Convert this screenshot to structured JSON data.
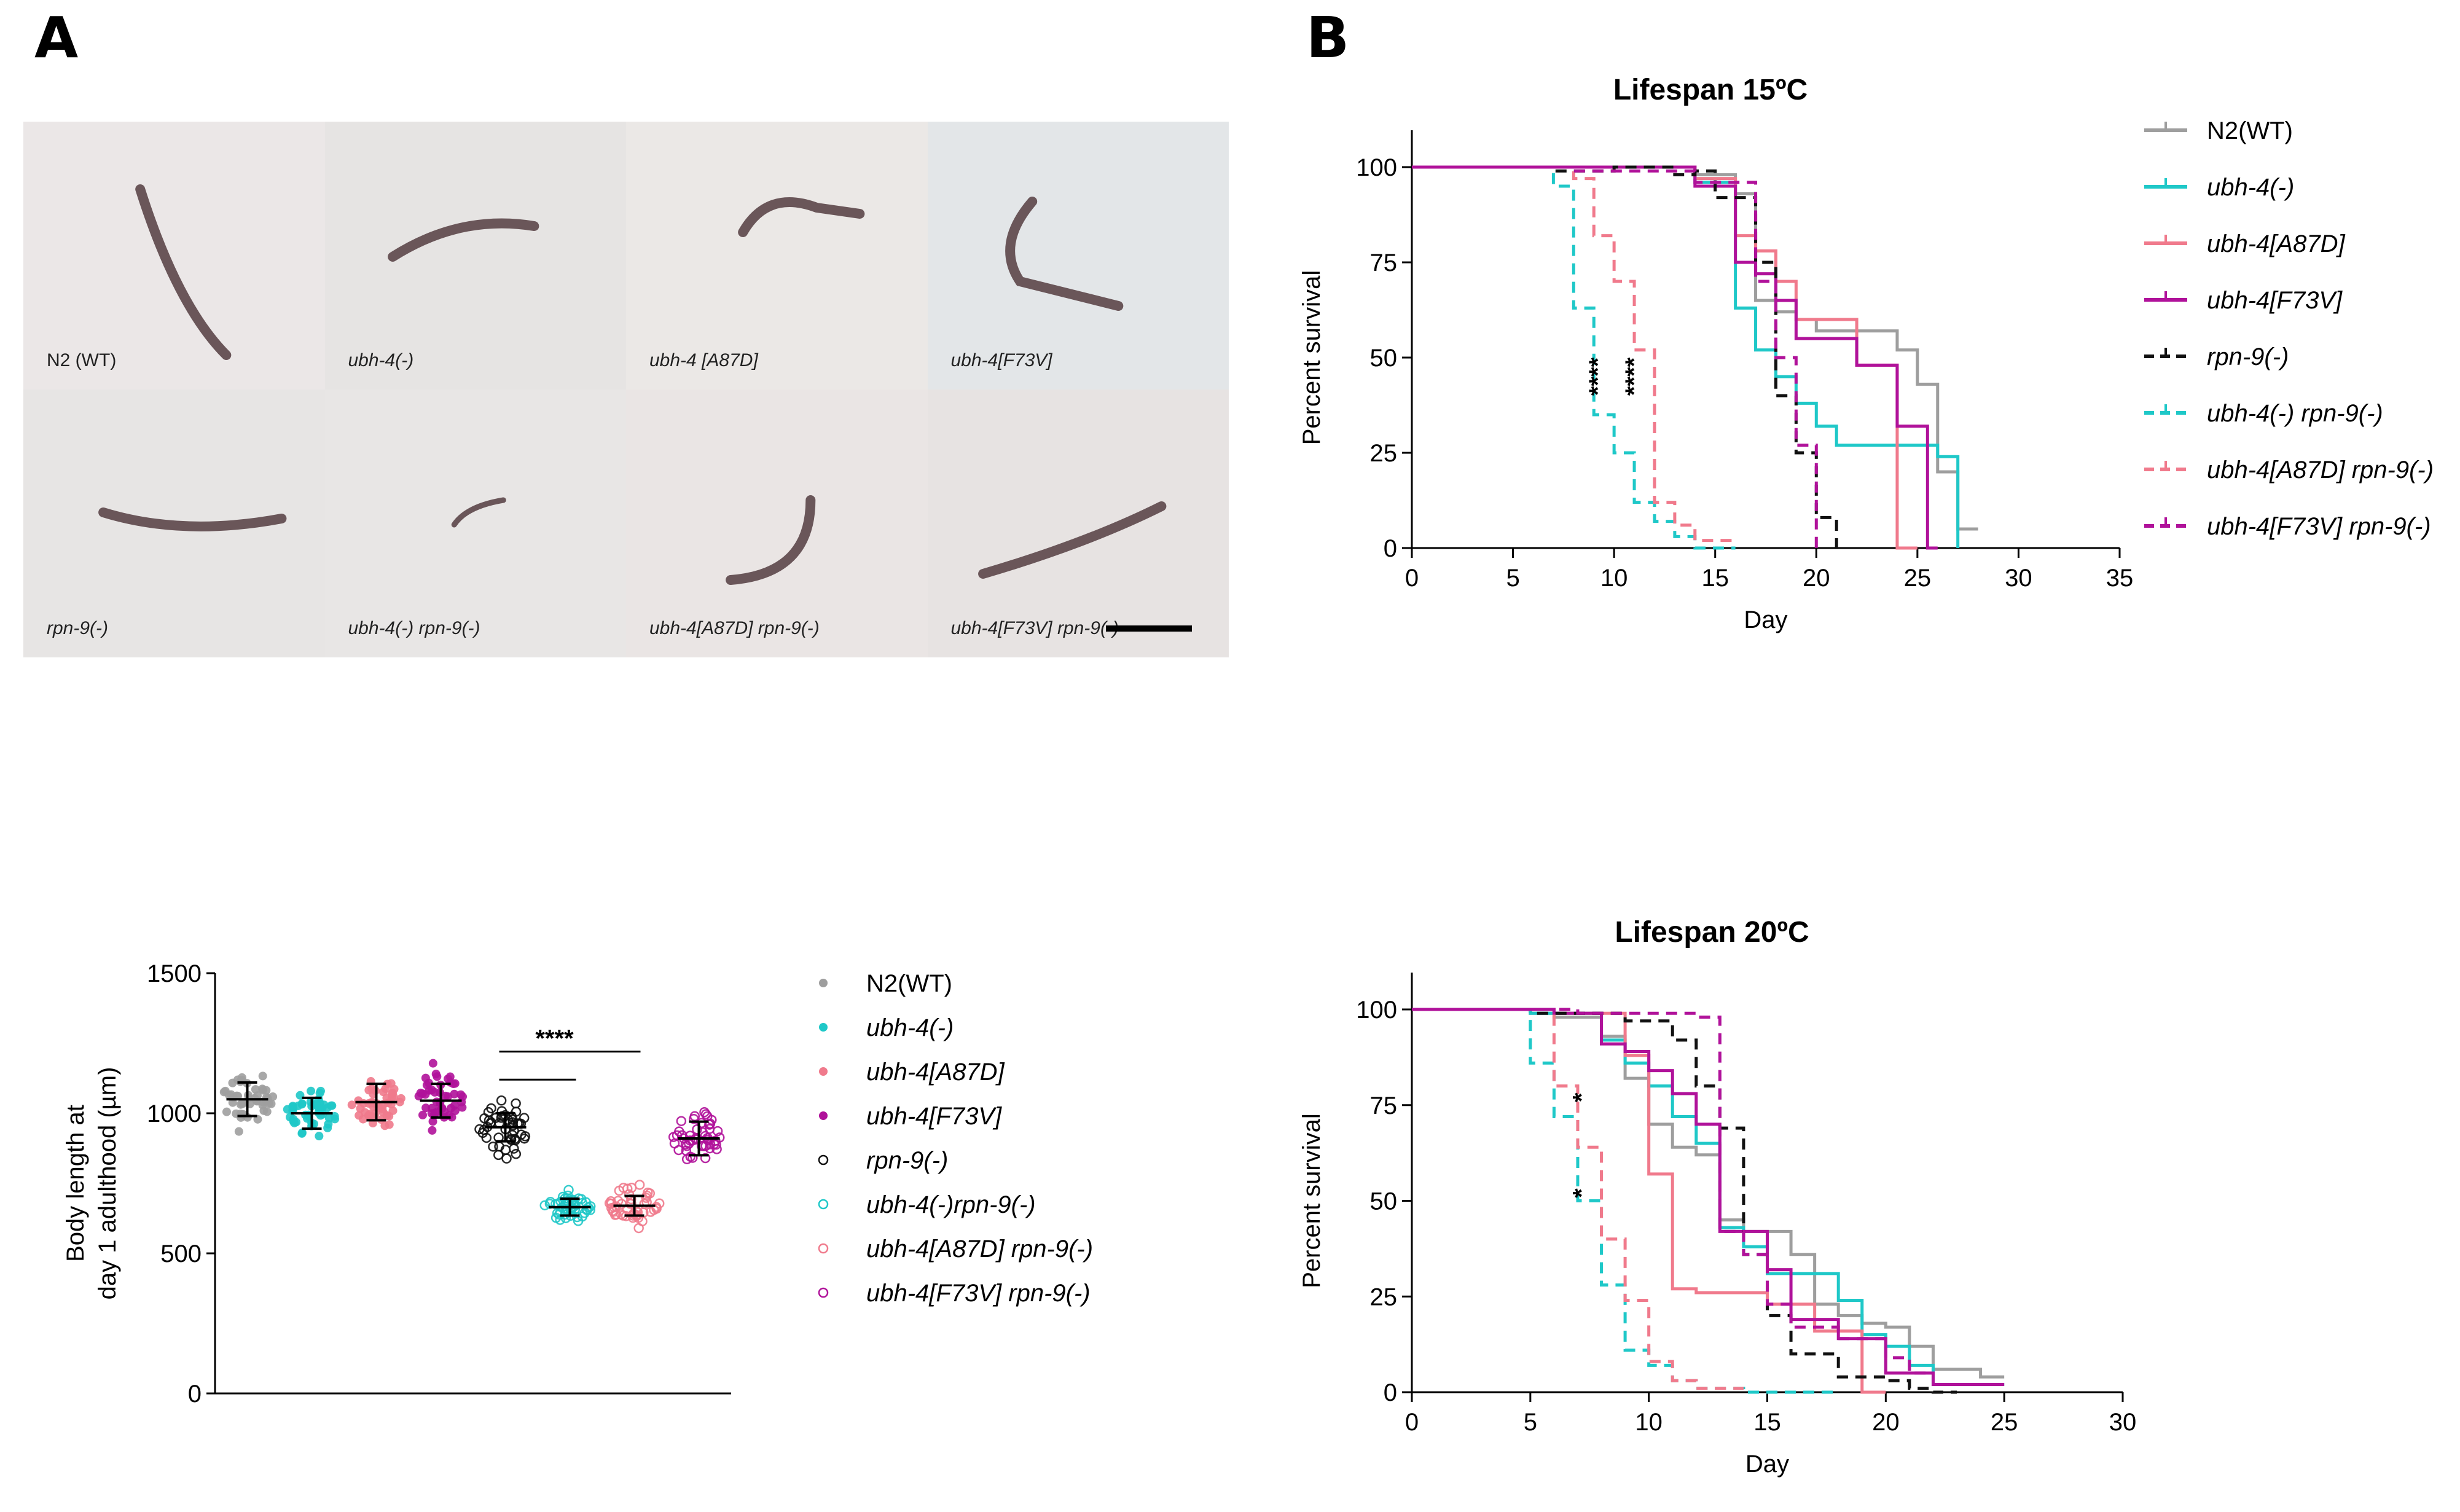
{
  "panel_a_letter": "A",
  "panel_b_letter": "B",
  "photos": {
    "labels": [
      {
        "text": "N2 (WT)",
        "italic": false
      },
      {
        "text": "ubh-4(-)",
        "italic": true
      },
      {
        "text": "ubh-4 [A87D]",
        "italic": true
      },
      {
        "text": "ubh-4[F73V]",
        "italic": true
      },
      {
        "text": "rpn-9(-)",
        "italic": true
      },
      {
        "text": "ubh-4(-) rpn-9(-)",
        "italic": true
      },
      {
        "text": "ubh-4[A87D] rpn-9(-)",
        "italic": true
      },
      {
        "text": "ubh-4[F73V] rpn-9(-)",
        "italic": true
      }
    ]
  },
  "chart_data": [
    {
      "id": "body-length",
      "type": "scatter",
      "title": "",
      "ylabel_line1": "Body length at",
      "ylabel_line2": "day 1 adulthood (µm)",
      "ylim": [
        0,
        1500
      ],
      "yticks": [
        0,
        500,
        1000,
        1500
      ],
      "groups": [
        {
          "name": "N2(WT)",
          "italic": false,
          "color": "#9e9e9e",
          "filled": true,
          "mean": 1050,
          "sd": 60,
          "min": 850,
          "max": 1150
        },
        {
          "name": "ubh-4(-)",
          "italic": true,
          "color": "#1fc8c8",
          "filled": true,
          "mean": 1000,
          "sd": 55,
          "min": 880,
          "max": 1120
        },
        {
          "name": "ubh-4[A87D]",
          "italic": true,
          "color": "#f07a8c",
          "filled": true,
          "mean": 1040,
          "sd": 65,
          "min": 920,
          "max": 1170
        },
        {
          "name": "ubh-4[F73V]",
          "italic": true,
          "color": "#b0129a",
          "filled": true,
          "mean": 1045,
          "sd": 60,
          "min": 920,
          "max": 1210
        },
        {
          "name": "rpn-9(-)",
          "italic": true,
          "color": "#111111",
          "filled": false,
          "mean": 950,
          "sd": 50,
          "min": 810,
          "max": 1060
        },
        {
          "name": "ubh-4(-)rpn-9(-)",
          "italic": true,
          "color": "#1fc8c8",
          "filled": false,
          "mean": 665,
          "sd": 30,
          "min": 600,
          "max": 740
        },
        {
          "name": "ubh-4[A87D] rpn-9(-)",
          "italic": true,
          "color": "#f07a8c",
          "filled": false,
          "mean": 670,
          "sd": 35,
          "min": 590,
          "max": 780
        },
        {
          "name": "ubh-4[F73V] rpn-9(-)",
          "italic": true,
          "color": "#b0129a",
          "filled": false,
          "mean": 910,
          "sd": 60,
          "min": 760,
          "max": 1040
        }
      ],
      "significance": [
        {
          "from": 4,
          "to": 5,
          "value": 1120
        },
        {
          "from": 4,
          "to": 6,
          "value": 1220,
          "label": "****"
        }
      ]
    },
    {
      "id": "lifespan-15",
      "type": "line",
      "title": "Lifespan 15ºC",
      "xlabel": "Day",
      "ylabel": "Percent survival",
      "xlim": [
        0,
        35
      ],
      "ylim": [
        0,
        100
      ],
      "xticks": [
        0,
        5,
        10,
        15,
        20,
        25,
        30,
        35
      ],
      "yticks": [
        0,
        25,
        50,
        75,
        100
      ],
      "annotations": [
        {
          "text": "****",
          "x": 9.6,
          "y": 45
        },
        {
          "text": "****",
          "x": 11.4,
          "y": 45
        }
      ],
      "series": [
        {
          "name": "N2(WT)",
          "italic": false,
          "color": "#9e9e9e",
          "dash": false,
          "x": [
            0,
            14,
            14,
            16,
            16,
            17,
            17,
            18,
            18,
            19,
            19,
            20,
            20,
            21,
            21,
            24,
            24,
            25,
            25,
            26,
            26,
            27,
            27,
            28
          ],
          "y": [
            100,
            100,
            98,
            98,
            93,
            93,
            65,
            65,
            62,
            62,
            60,
            60,
            57,
            57,
            57,
            57,
            52,
            52,
            43,
            43,
            20,
            20,
            5,
            5
          ]
        },
        {
          "name": "ubh-4(-)",
          "italic": true,
          "color": "#1fc8c8",
          "dash": false,
          "x": [
            0,
            14,
            14,
            16,
            16,
            17,
            17,
            18,
            18,
            19,
            19,
            20,
            20,
            21,
            21,
            26,
            26,
            27,
            27
          ],
          "y": [
            100,
            100,
            96,
            96,
            63,
            63,
            52,
            52,
            45,
            45,
            38,
            38,
            32,
            32,
            27,
            27,
            24,
            24,
            0
          ]
        },
        {
          "name": "ubh-4[A87D]",
          "italic": true,
          "color": "#f07a8c",
          "dash": false,
          "x": [
            0,
            14,
            14,
            16,
            16,
            17,
            17,
            18,
            18,
            19,
            19,
            22,
            22,
            24,
            24,
            25
          ],
          "y": [
            100,
            100,
            97,
            97,
            82,
            82,
            78,
            78,
            70,
            70,
            60,
            60,
            48,
            48,
            0,
            0
          ]
        },
        {
          "name": "ubh-4[F73V]",
          "italic": true,
          "color": "#b0129a",
          "dash": false,
          "x": [
            0,
            14,
            14,
            16,
            16,
            17,
            17,
            18,
            18,
            19,
            19,
            22,
            22,
            24,
            24,
            25.5,
            25.5,
            26
          ],
          "y": [
            100,
            100,
            95,
            95,
            75,
            75,
            72,
            72,
            65,
            65,
            55,
            55,
            48,
            48,
            32,
            32,
            0,
            0
          ]
        },
        {
          "name": "rpn-9(-)",
          "italic": true,
          "color": "#111111",
          "dash": true,
          "x": [
            0,
            7,
            7,
            10,
            10,
            13,
            13,
            14,
            14,
            15,
            15,
            17,
            17,
            18,
            18,
            19,
            19,
            20,
            20,
            21,
            21
          ],
          "y": [
            100,
            100,
            99,
            99,
            100,
            100,
            98,
            98,
            99,
            99,
            92,
            92,
            75,
            75,
            40,
            40,
            25,
            25,
            8,
            8,
            0
          ]
        },
        {
          "name": "ubh-4(-) rpn-9(-)",
          "italic": true,
          "color": "#1fc8c8",
          "dash": true,
          "x": [
            0,
            7,
            7,
            8,
            8,
            9,
            9,
            10,
            10,
            11,
            11,
            12,
            12,
            13,
            13,
            14,
            14,
            16
          ],
          "y": [
            100,
            100,
            95,
            95,
            63,
            63,
            35,
            35,
            25,
            25,
            12,
            12,
            7,
            7,
            3,
            3,
            0,
            0
          ]
        },
        {
          "name": "ubh-4[A87D] rpn-9(-)",
          "italic": true,
          "color": "#f07a8c",
          "dash": true,
          "x": [
            0,
            8,
            8,
            9,
            9,
            10,
            10,
            11,
            11,
            12,
            12,
            13,
            13,
            14,
            14,
            16
          ],
          "y": [
            100,
            100,
            97,
            97,
            82,
            82,
            70,
            70,
            52,
            52,
            12,
            12,
            6,
            6,
            2,
            2
          ]
        },
        {
          "name": "ubh-4[F73V] rpn-9(-)",
          "italic": true,
          "color": "#b0129a",
          "dash": true,
          "x": [
            0,
            8,
            8,
            14,
            14,
            17,
            17,
            18,
            18,
            19,
            19,
            20,
            20
          ],
          "y": [
            100,
            100,
            99,
            99,
            96,
            96,
            70,
            70,
            50,
            50,
            27,
            27,
            0
          ]
        }
      ]
    },
    {
      "id": "lifespan-20",
      "type": "line",
      "title": "Lifespan 20ºC",
      "xlabel": "Day",
      "ylabel": "Percent survival",
      "xlim": [
        0,
        30
      ],
      "ylim": [
        0,
        100
      ],
      "xticks": [
        0,
        5,
        10,
        15,
        20,
        25,
        30
      ],
      "yticks": [
        0,
        25,
        50,
        75,
        100
      ],
      "annotations": [
        {
          "text": "*",
          "x": 7.5,
          "y": 77
        },
        {
          "text": "*",
          "x": 7.5,
          "y": 52
        }
      ],
      "series": [
        {
          "name": "N2(WT)",
          "italic": false,
          "color": "#9e9e9e",
          "dash": false,
          "x": [
            0,
            5,
            5,
            6,
            6,
            8,
            8,
            9,
            9,
            10,
            10,
            11,
            11,
            12,
            12,
            13,
            13,
            14,
            14,
            16,
            16,
            17,
            17,
            18,
            18,
            19,
            19,
            20,
            20,
            21,
            21,
            22,
            22,
            24,
            24,
            25
          ],
          "y": [
            100,
            100,
            99,
            99,
            98,
            98,
            93,
            93,
            82,
            82,
            70,
            70,
            64,
            64,
            62,
            62,
            45,
            45,
            42,
            42,
            36,
            36,
            23,
            23,
            20,
            20,
            18,
            18,
            17,
            17,
            12,
            12,
            6,
            6,
            4,
            4
          ]
        },
        {
          "name": "ubh-4(-)",
          "italic": true,
          "color": "#1fc8c8",
          "dash": false,
          "x": [
            0,
            5,
            5,
            8,
            8,
            9,
            9,
            10,
            10,
            11,
            11,
            12,
            12,
            13,
            13,
            14,
            14,
            15,
            15,
            18,
            18,
            19,
            19,
            20,
            20,
            21,
            21,
            22,
            22,
            25
          ],
          "y": [
            100,
            100,
            99,
            99,
            92,
            92,
            86,
            86,
            80,
            80,
            72,
            72,
            65,
            65,
            43,
            43,
            38,
            38,
            31,
            31,
            24,
            24,
            15,
            15,
            12,
            12,
            7,
            7,
            2,
            2
          ]
        },
        {
          "name": "ubh-4[A87D]",
          "italic": true,
          "color": "#f07a8c",
          "dash": false,
          "x": [
            0,
            6,
            6,
            9,
            9,
            10,
            10,
            11,
            11,
            12,
            12,
            13,
            13,
            15,
            15,
            17,
            17,
            19,
            19,
            20
          ],
          "y": [
            100,
            100,
            99,
            99,
            88,
            88,
            57,
            57,
            27,
            27,
            26,
            26,
            26,
            26,
            23,
            23,
            16,
            16,
            0,
            0
          ]
        },
        {
          "name": "ubh-4[F73V]",
          "italic": true,
          "color": "#b0129a",
          "dash": false,
          "x": [
            0,
            6,
            6,
            8,
            8,
            9,
            9,
            10,
            10,
            11,
            11,
            12,
            12,
            13,
            13,
            15,
            15,
            16,
            16,
            18,
            18,
            20,
            20,
            22,
            22,
            25
          ],
          "y": [
            100,
            100,
            99,
            99,
            91,
            91,
            89,
            89,
            84,
            84,
            78,
            78,
            70,
            70,
            42,
            42,
            32,
            32,
            19,
            19,
            14,
            14,
            5,
            5,
            2,
            2
          ]
        },
        {
          "name": "rpn-9(-)",
          "italic": true,
          "color": "#111111",
          "dash": true,
          "x": [
            0,
            5,
            5,
            9,
            9,
            11,
            11,
            12,
            12,
            13,
            13,
            14,
            14,
            15,
            15,
            16,
            16,
            18,
            18,
            20,
            20,
            21,
            21,
            22,
            22,
            23
          ],
          "y": [
            100,
            100,
            99,
            99,
            97,
            97,
            92,
            92,
            80,
            80,
            69,
            69,
            36,
            36,
            20,
            20,
            10,
            10,
            4,
            4,
            3,
            3,
            1,
            1,
            0,
            0
          ]
        },
        {
          "name": "ubh-4(-) rpn-9(-)",
          "italic": true,
          "color": "#1fc8c8",
          "dash": true,
          "x": [
            0,
            5,
            5,
            6,
            6,
            7,
            7,
            8,
            8,
            9,
            9,
            10,
            10,
            11,
            11,
            12,
            12,
            14,
            14,
            18
          ],
          "y": [
            100,
            100,
            86,
            86,
            72,
            72,
            50,
            50,
            28,
            28,
            11,
            11,
            7,
            7,
            3,
            3,
            1,
            1,
            0,
            0
          ]
        },
        {
          "name": "ubh-4[A87D] rpn-9(-)",
          "italic": true,
          "color": "#f07a8c",
          "dash": true,
          "x": [
            0,
            6,
            6,
            7,
            7,
            8,
            8,
            9,
            9,
            10,
            10,
            11,
            11,
            12,
            12,
            14
          ],
          "y": [
            100,
            100,
            80,
            80,
            64,
            64,
            40,
            40,
            24,
            24,
            8,
            8,
            3,
            3,
            1,
            1
          ]
        },
        {
          "name": "ubh-4[F73V] rpn-9(-)",
          "italic": true,
          "color": "#b0129a",
          "dash": true,
          "x": [
            0,
            7,
            7,
            12,
            12,
            13,
            13,
            14,
            14,
            15,
            15,
            16,
            16,
            18,
            18,
            20,
            20,
            21,
            21,
            22
          ],
          "y": [
            100,
            100,
            99,
            99,
            98,
            98,
            42,
            42,
            36,
            36,
            23,
            23,
            17,
            17,
            14,
            14,
            9,
            9,
            5,
            5
          ]
        }
      ]
    }
  ],
  "legends": {
    "body_length": [
      "N2(WT)",
      "ubh-4(-)",
      "ubh-4[A87D]",
      "ubh-4[F73V]",
      "rpn-9(-)",
      "ubh-4(-)rpn-9(-)",
      "ubh-4[A87D] rpn-9(-)",
      "ubh-4[F73V] rpn-9(-)"
    ],
    "lifespan": [
      "N2(WT)",
      "ubh-4(-)",
      "ubh-4[A87D]",
      "ubh-4[F73V]",
      "rpn-9(-)",
      "ubh-4(-) rpn-9(-)",
      "ubh-4[A87D] rpn-9(-)",
      "ubh-4[F73V] rpn-9(-)"
    ]
  }
}
